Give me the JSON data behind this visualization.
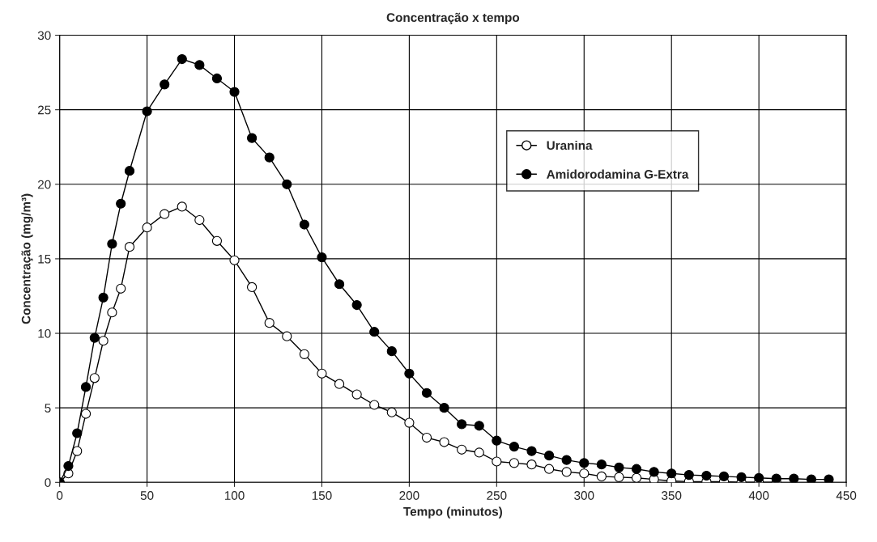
{
  "chart_data": {
    "type": "line",
    "title": "Concentração x tempo",
    "xlabel": "Tempo (minutos)",
    "ylabel": "Concentração (mg/m³)",
    "xlim": [
      0,
      450
    ],
    "xticks": [
      0,
      50,
      100,
      150,
      200,
      250,
      300,
      350,
      400,
      450
    ],
    "ylim": [
      0,
      30
    ],
    "yticks": [
      0,
      5,
      10,
      15,
      20,
      25,
      30
    ],
    "grid": true,
    "legend": "top right",
    "marker": "circle",
    "line_style": "solid",
    "series": [
      {
        "name": "Uranina",
        "color": "#ffffff",
        "x": [
          0,
          5,
          10,
          15,
          20,
          25,
          30,
          35,
          40,
          50,
          60,
          70,
          80,
          90,
          100,
          110,
          120,
          130,
          140,
          150,
          160,
          170,
          180,
          190,
          200,
          210,
          220,
          230,
          240,
          250,
          260,
          270,
          280,
          290,
          300,
          310,
          320,
          330,
          340,
          350,
          360,
          370,
          380,
          390,
          400,
          410
        ],
        "values": [
          0,
          0.6,
          2.1,
          4.6,
          7.0,
          9.5,
          11.4,
          13.0,
          15.8,
          17.1,
          18.0,
          18.5,
          17.6,
          16.2,
          14.9,
          13.1,
          10.7,
          9.8,
          8.6,
          7.3,
          6.6,
          5.9,
          5.2,
          4.7,
          4.0,
          3.0,
          2.7,
          2.2,
          2.0,
          1.4,
          1.3,
          1.2,
          0.9,
          0.7,
          0.6,
          0.4,
          0.35,
          0.3,
          0.2,
          0.1,
          0.05,
          0.05,
          0.05,
          0,
          0,
          0
        ]
      },
      {
        "name": "Amidorodamina G-Extra",
        "color": "#000000",
        "x": [
          0,
          5,
          10,
          15,
          20,
          25,
          30,
          35,
          40,
          50,
          60,
          70,
          80,
          90,
          100,
          110,
          120,
          130,
          140,
          150,
          160,
          170,
          180,
          190,
          200,
          210,
          220,
          230,
          240,
          250,
          260,
          270,
          280,
          290,
          300,
          310,
          320,
          330,
          340,
          350,
          360,
          370,
          380,
          390,
          400,
          410,
          420,
          430,
          440
        ],
        "values": [
          0,
          1.1,
          3.3,
          6.4,
          9.7,
          12.4,
          16.0,
          18.7,
          20.9,
          24.9,
          26.7,
          28.4,
          28.0,
          27.1,
          26.2,
          23.1,
          21.8,
          20.0,
          17.3,
          15.1,
          13.3,
          11.9,
          10.1,
          8.8,
          7.3,
          6.0,
          5.0,
          3.9,
          3.8,
          2.8,
          2.4,
          2.1,
          1.8,
          1.5,
          1.3,
          1.2,
          1.0,
          0.9,
          0.7,
          0.6,
          0.5,
          0.45,
          0.4,
          0.35,
          0.3,
          0.25,
          0.25,
          0.2,
          0.2
        ]
      }
    ]
  }
}
